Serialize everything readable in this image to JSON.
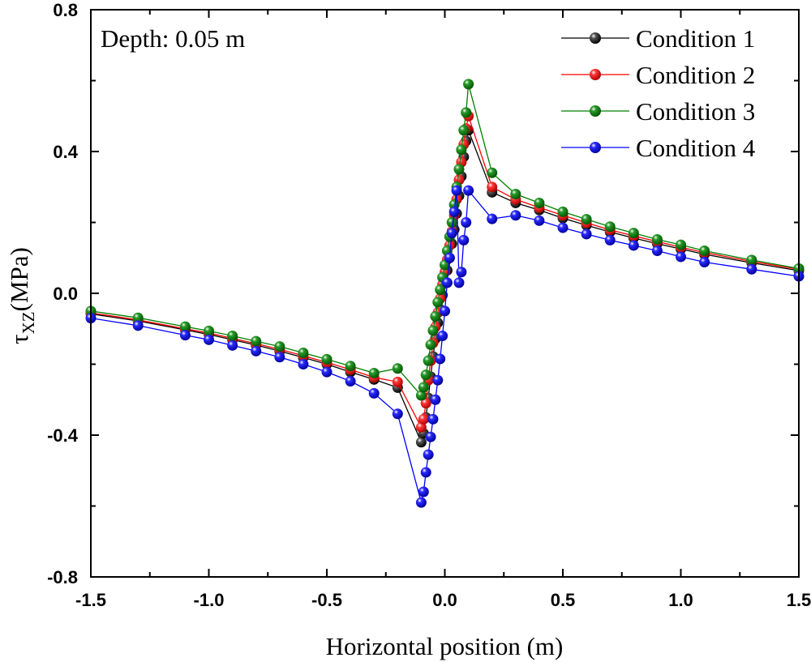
{
  "chart_data": {
    "type": "line",
    "annotation": "Depth: 0.05 m",
    "xlabel": "Horizontal position (m)",
    "ylabel_symbol": "τ",
    "ylabel_subscript": "XZ",
    "ylabel_unit": "(MPa)",
    "xlim": [
      -1.5,
      1.5
    ],
    "ylim": [
      -0.8,
      0.8
    ],
    "x_ticks": [
      -1.5,
      -1.0,
      -0.5,
      0.0,
      0.5,
      1.0,
      1.5
    ],
    "x_tick_labels": [
      "-1.5",
      "-1.0",
      "-0.5",
      "0.0",
      "0.5",
      "1.0",
      "1.5"
    ],
    "y_ticks": [
      -0.8,
      -0.4,
      0.0,
      0.4,
      0.8
    ],
    "y_tick_labels": [
      "-0.8",
      "-0.4",
      "0.0",
      "0.4",
      "0.8"
    ],
    "legend_position": "top-right",
    "x": [
      -1.5,
      -1.3,
      -1.1,
      -1.0,
      -0.9,
      -0.8,
      -0.7,
      -0.6,
      -0.5,
      -0.4,
      -0.3,
      -0.2,
      -0.1,
      -0.09,
      -0.08,
      -0.07,
      -0.06,
      -0.05,
      -0.04,
      -0.03,
      -0.02,
      -0.01,
      0.0,
      0.01,
      0.02,
      0.03,
      0.04,
      0.05,
      0.06,
      0.07,
      0.08,
      0.09,
      0.1,
      0.2,
      0.3,
      0.4,
      0.5,
      0.6,
      0.7,
      0.8,
      0.9,
      1.0,
      1.1,
      1.3,
      1.5
    ],
    "series": [
      {
        "name": "Condition 1",
        "color": "#000000",
        "values": [
          -0.058,
          -0.078,
          -0.103,
          -0.116,
          -0.131,
          -0.146,
          -0.163,
          -0.181,
          -0.2,
          -0.222,
          -0.243,
          -0.266,
          -0.42,
          -0.395,
          -0.35,
          -0.295,
          -0.235,
          -0.178,
          -0.128,
          -0.083,
          -0.045,
          -0.005,
          0.03,
          0.065,
          0.1,
          0.14,
          0.18,
          0.225,
          0.275,
          0.33,
          0.385,
          0.43,
          0.46,
          0.285,
          0.255,
          0.235,
          0.212,
          0.192,
          0.173,
          0.156,
          0.14,
          0.125,
          0.11,
          0.086,
          0.064
        ]
      },
      {
        "name": "Condition 2",
        "color": "#ff0000",
        "values": [
          -0.055,
          -0.075,
          -0.1,
          -0.112,
          -0.127,
          -0.142,
          -0.158,
          -0.176,
          -0.195,
          -0.215,
          -0.237,
          -0.25,
          -0.378,
          -0.355,
          -0.31,
          -0.245,
          -0.19,
          -0.14,
          -0.095,
          -0.055,
          -0.015,
          0.025,
          0.06,
          0.095,
          0.135,
          0.175,
          0.22,
          0.265,
          0.32,
          0.37,
          0.42,
          0.465,
          0.5,
          0.3,
          0.265,
          0.242,
          0.22,
          0.199,
          0.179,
          0.162,
          0.146,
          0.13,
          0.115,
          0.09,
          0.068
        ]
      },
      {
        "name": "Condition 3",
        "color": "#008000",
        "values": [
          -0.05,
          -0.069,
          -0.094,
          -0.106,
          -0.12,
          -0.135,
          -0.15,
          -0.168,
          -0.186,
          -0.205,
          -0.225,
          -0.212,
          -0.288,
          -0.265,
          -0.23,
          -0.19,
          -0.145,
          -0.105,
          -0.065,
          -0.025,
          0.01,
          0.045,
          0.08,
          0.12,
          0.16,
          0.2,
          0.25,
          0.3,
          0.35,
          0.405,
          0.46,
          0.51,
          0.59,
          0.34,
          0.28,
          0.255,
          0.23,
          0.209,
          0.188,
          0.17,
          0.152,
          0.137,
          0.12,
          0.094,
          0.07
        ]
      },
      {
        "name": "Condition 4",
        "color": "#0000ff",
        "values": [
          -0.07,
          -0.091,
          -0.118,
          -0.131,
          -0.147,
          -0.163,
          -0.18,
          -0.2,
          -0.222,
          -0.248,
          -0.282,
          -0.34,
          -0.59,
          -0.56,
          -0.505,
          -0.455,
          -0.405,
          -0.355,
          -0.3,
          -0.245,
          -0.185,
          -0.12,
          -0.05,
          0.03,
          0.1,
          0.17,
          0.23,
          0.29,
          0.03,
          0.06,
          0.15,
          0.2,
          0.29,
          0.21,
          0.22,
          0.205,
          0.185,
          0.167,
          0.15,
          0.135,
          0.12,
          0.103,
          0.088,
          0.068,
          0.048
        ]
      }
    ]
  }
}
